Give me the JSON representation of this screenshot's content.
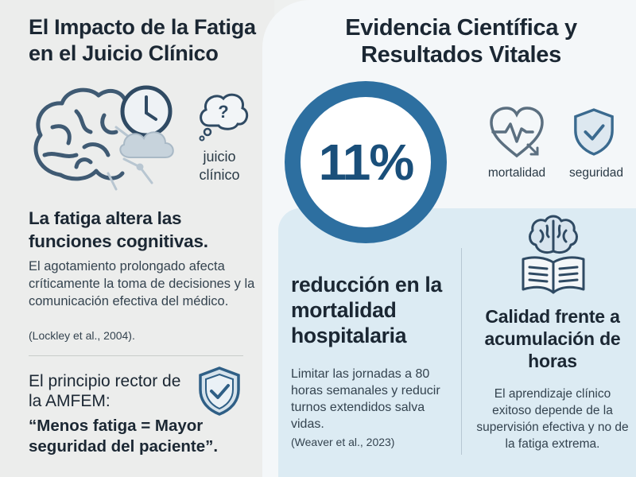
{
  "left": {
    "title": "El Impacto de la Fatiga en el Juicio Clínico",
    "label_juicio": "juicio clínico",
    "heading": "La fatiga altera las funciones cognitivas.",
    "paragraph": "El agotamiento prolongado afecta críticamente la toma de decisiones y la comunicación efectiva del médico.",
    "citation": "(Lockley et al., 2004).",
    "principle": "El principio rector de la AMFEM:",
    "principle_quote": "“Menos fatiga = Mayor seguridad del paciente”."
  },
  "right": {
    "title": "Evidencia Científica y Resultados Vitales",
    "percent": "11%",
    "label_mortalidad": "mortalidad",
    "label_seguridad": "seguridad",
    "reduction_heading": "reducción en la mortalidad hospitalaria",
    "reduction_text": "Limitar las jornadas a 80 horas semanales y reducir turnos extendidos salva vidas.",
    "reduction_citation": "(Weaver et al., 2023)",
    "quality_heading": "Calidad frente a acumulación de horas",
    "quality_text": "El aprendizaje clínico exitoso depende de la supervisión efectiva y no de la fatiga extrema."
  },
  "colors": {
    "accent_blue": "#2d6fa0",
    "dark_blue": "#1a4f7a",
    "panel_blue": "#dcebf3"
  },
  "icons": [
    "brain-clock-icon",
    "thought-question-icon",
    "shield-check-icon",
    "heart-pulse-icon",
    "brain-book-icon"
  ]
}
